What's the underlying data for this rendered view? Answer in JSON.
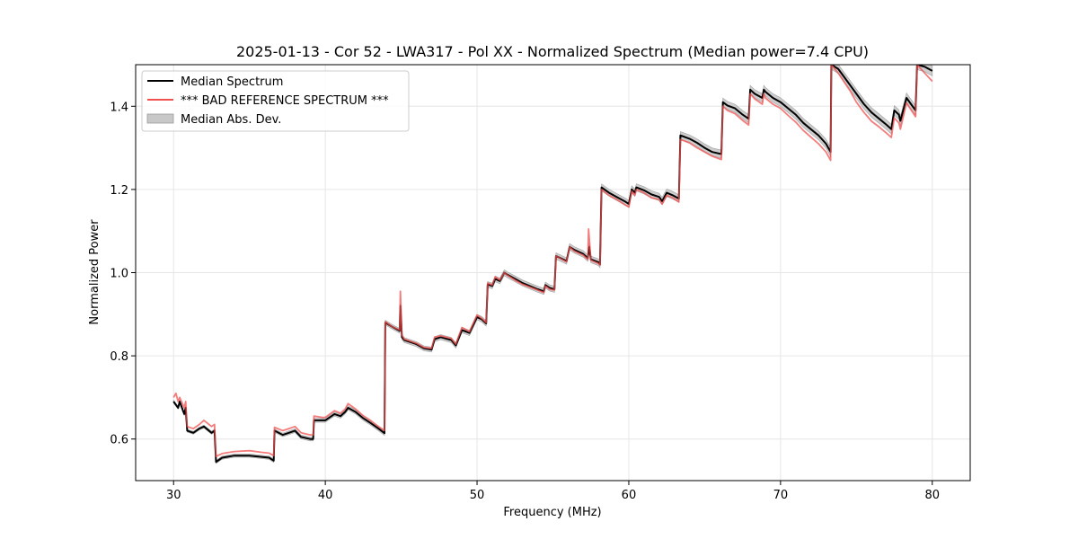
{
  "chart_data": {
    "type": "line",
    "title": "2025-01-13 - Cor 52 - LWA317 - Pol XX - Normalized Spectrum (Median power=7.4 CPU)",
    "xlabel": "Frequency (MHz)",
    "ylabel": "Normalized Power",
    "xlim": [
      27.5,
      82.5
    ],
    "ylim": [
      0.5,
      1.5
    ],
    "xticks": [
      30,
      40,
      50,
      60,
      70,
      80
    ],
    "yticks": [
      0.6,
      0.8,
      1.0,
      1.2,
      1.4
    ],
    "xtick_labels": [
      "30",
      "40",
      "50",
      "60",
      "70",
      "80"
    ],
    "ytick_labels": [
      "0.6",
      "0.8",
      "1.0",
      "1.2",
      "1.4"
    ],
    "grid": true,
    "legend": {
      "placement": "top-left",
      "entries": [
        {
          "label": "Median Spectrum",
          "kind": "line",
          "color": "#000000"
        },
        {
          "label": "*** BAD REFERENCE SPECTRUM ***",
          "kind": "line",
          "color": "#f05050"
        },
        {
          "label": "Median Abs. Dev.",
          "kind": "patch",
          "color": "#c8c8c8"
        }
      ]
    },
    "series": [
      {
        "name": "Median Spectrum",
        "color": "#000000",
        "x": [
          30.0,
          30.3,
          30.4,
          30.7,
          30.8,
          30.9,
          31.3,
          31.7,
          32.0,
          32.5,
          32.7,
          32.8,
          33.2,
          34.0,
          35.0,
          35.8,
          36.3,
          36.6,
          36.65,
          37.2,
          37.6,
          38.0,
          38.4,
          39.0,
          39.2,
          39.25,
          39.8,
          40.0,
          40.6,
          41.0,
          41.3,
          41.5,
          42.0,
          42.5,
          43.0,
          43.5,
          43.9,
          43.95,
          44.4,
          44.9,
          44.95,
          45.05,
          45.2,
          46.0,
          46.5,
          47.0,
          47.2,
          47.6,
          48.3,
          48.6,
          49.0,
          49.5,
          50.0,
          50.3,
          50.6,
          50.7,
          51.0,
          51.2,
          51.5,
          51.8,
          52.0,
          52.5,
          53.0,
          54.0,
          54.4,
          54.5,
          54.8,
          55.1,
          55.2,
          55.9,
          56.1,
          56.4,
          57.0,
          57.3,
          57.4,
          57.5,
          58.0,
          58.1,
          58.2,
          58.7,
          59.2,
          59.8,
          60.0,
          60.2,
          60.4,
          60.5,
          61.0,
          61.5,
          62.0,
          62.2,
          62.5,
          62.9,
          63.3,
          63.4,
          64.0,
          64.5,
          65.0,
          65.5,
          66.1,
          66.2,
          66.5,
          67.0,
          67.5,
          67.9,
          68.0,
          68.3,
          68.8,
          68.9,
          69.0,
          69.5,
          70.0,
          70.5,
          71.0,
          71.5,
          72.0,
          72.5,
          73.0,
          73.3,
          73.35,
          73.8,
          74.2,
          74.6,
          75.0,
          75.5,
          76.0,
          76.5,
          77.0,
          77.3,
          77.5,
          77.8,
          77.9,
          78.3,
          78.9,
          79.0,
          79.5,
          80.0
        ],
        "y": [
          0.69,
          0.675,
          0.69,
          0.66,
          0.675,
          0.62,
          0.615,
          0.625,
          0.63,
          0.615,
          0.62,
          0.545,
          0.555,
          0.56,
          0.56,
          0.557,
          0.555,
          0.548,
          0.62,
          0.61,
          0.615,
          0.62,
          0.605,
          0.6,
          0.6,
          0.645,
          0.645,
          0.645,
          0.66,
          0.655,
          0.665,
          0.675,
          0.665,
          0.65,
          0.638,
          0.625,
          0.614,
          0.88,
          0.87,
          0.86,
          0.92,
          0.845,
          0.838,
          0.828,
          0.818,
          0.815,
          0.84,
          0.845,
          0.838,
          0.825,
          0.862,
          0.855,
          0.893,
          0.888,
          0.878,
          0.972,
          0.968,
          0.985,
          0.98,
          1.0,
          0.995,
          0.985,
          0.975,
          0.96,
          0.955,
          0.97,
          0.963,
          0.96,
          1.04,
          1.028,
          1.062,
          1.055,
          1.045,
          1.035,
          1.062,
          1.032,
          1.025,
          1.02,
          1.205,
          1.192,
          1.182,
          1.17,
          1.165,
          1.2,
          1.192,
          1.205,
          1.198,
          1.188,
          1.182,
          1.172,
          1.192,
          1.186,
          1.178,
          1.33,
          1.322,
          1.312,
          1.3,
          1.29,
          1.285,
          1.41,
          1.402,
          1.395,
          1.38,
          1.37,
          1.44,
          1.43,
          1.42,
          1.44,
          1.435,
          1.42,
          1.41,
          1.395,
          1.38,
          1.36,
          1.345,
          1.33,
          1.31,
          1.29,
          1.5,
          1.49,
          1.47,
          1.45,
          1.43,
          1.405,
          1.385,
          1.37,
          1.355,
          1.345,
          1.39,
          1.38,
          1.365,
          1.42,
          1.39,
          1.5,
          1.495,
          1.485
        ]
      },
      {
        "name": "*** BAD REFERENCE SPECTRUM ***",
        "color": "#f05050",
        "x": [
          30.0,
          30.15,
          30.3,
          30.4,
          30.7,
          30.8,
          30.9,
          31.3,
          31.7,
          32.0,
          32.5,
          32.7,
          32.8,
          33.2,
          34.0,
          35.0,
          35.8,
          36.3,
          36.6,
          36.65,
          37.2,
          37.6,
          38.0,
          38.4,
          39.0,
          39.2,
          39.25,
          39.8,
          40.0,
          40.6,
          41.0,
          41.3,
          41.5,
          42.0,
          42.5,
          43.0,
          43.5,
          43.9,
          43.95,
          44.4,
          44.9,
          44.95,
          45.05,
          45.2,
          46.0,
          46.5,
          47.0,
          47.2,
          47.6,
          48.3,
          48.6,
          49.0,
          49.5,
          50.0,
          50.3,
          50.6,
          50.7,
          51.0,
          51.2,
          51.5,
          51.8,
          52.0,
          52.5,
          53.0,
          54.0,
          54.4,
          54.5,
          54.8,
          55.1,
          55.2,
          55.9,
          56.1,
          56.4,
          57.0,
          57.3,
          57.35,
          57.5,
          58.0,
          58.1,
          58.2,
          58.7,
          59.2,
          59.8,
          60.0,
          60.2,
          60.4,
          60.5,
          61.0,
          61.5,
          62.0,
          62.2,
          62.5,
          62.9,
          63.3,
          63.4,
          64.0,
          64.5,
          65.0,
          65.5,
          66.1,
          66.2,
          66.5,
          67.0,
          67.5,
          67.9,
          68.0,
          68.3,
          68.8,
          68.9,
          69.0,
          69.5,
          70.0,
          70.5,
          71.0,
          71.5,
          72.0,
          72.5,
          73.0,
          73.3,
          73.35,
          73.8,
          74.2,
          74.6,
          75.0,
          75.5,
          76.0,
          76.5,
          77.0,
          77.3,
          77.5,
          77.8,
          77.9,
          78.3,
          78.9,
          79.0,
          79.5,
          80.0
        ],
        "y": [
          0.7,
          0.71,
          0.69,
          0.7,
          0.675,
          0.69,
          0.63,
          0.625,
          0.635,
          0.645,
          0.63,
          0.635,
          0.558,
          0.565,
          0.57,
          0.572,
          0.568,
          0.566,
          0.56,
          0.628,
          0.62,
          0.625,
          0.63,
          0.615,
          0.61,
          0.61,
          0.655,
          0.652,
          0.652,
          0.668,
          0.662,
          0.672,
          0.685,
          0.672,
          0.656,
          0.644,
          0.63,
          0.62,
          0.882,
          0.87,
          0.862,
          0.955,
          0.85,
          0.84,
          0.83,
          0.82,
          0.818,
          0.845,
          0.848,
          0.842,
          0.828,
          0.868,
          0.858,
          0.898,
          0.89,
          0.88,
          0.975,
          0.97,
          0.99,
          0.982,
          1.0,
          0.994,
          0.982,
          0.972,
          0.958,
          0.952,
          0.968,
          0.96,
          0.958,
          1.04,
          1.026,
          1.062,
          1.052,
          1.042,
          1.032,
          1.105,
          1.03,
          1.022,
          1.018,
          1.2,
          1.186,
          1.176,
          1.162,
          1.158,
          1.196,
          1.186,
          1.2,
          1.192,
          1.18,
          1.176,
          1.165,
          1.186,
          1.18,
          1.17,
          1.32,
          1.312,
          1.3,
          1.29,
          1.28,
          1.272,
          1.4,
          1.39,
          1.382,
          1.366,
          1.355,
          1.43,
          1.418,
          1.405,
          1.43,
          1.42,
          1.405,
          1.395,
          1.378,
          1.362,
          1.342,
          1.326,
          1.31,
          1.29,
          1.27,
          1.5,
          1.48,
          1.458,
          1.436,
          1.41,
          1.385,
          1.364,
          1.35,
          1.335,
          1.325,
          1.372,
          1.36,
          1.345,
          1.408,
          1.375,
          1.5,
          1.48,
          1.46
        ]
      }
    ],
    "mad_band": {
      "name": "Median Abs. Dev.",
      "color": "#c8c8c8",
      "halfwidth_start": 0.003,
      "halfwidth_end": 0.012
    }
  }
}
